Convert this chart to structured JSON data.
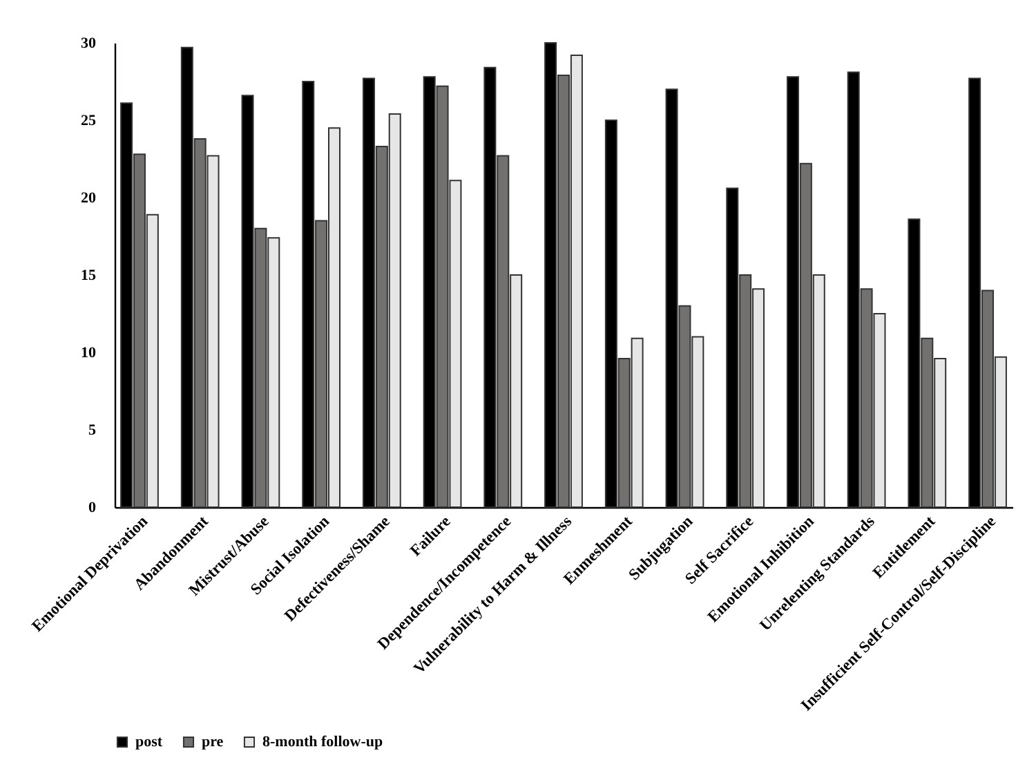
{
  "chart_data": {
    "type": "bar",
    "categories": [
      "Emotional Deprivation",
      "Abandonment",
      "Mistrust/Abuse",
      "Social Isolation",
      "Defectiveness/Shame",
      "Failure",
      "Dependence/Incompetence",
      "Vulnerability to Harm & Illness",
      "Enmeshment",
      "Subjugation",
      "Self Sacrifice",
      "Emotional Inhibition",
      "Unrelenting Standards",
      "Entitlement",
      "Insufficient Self-Control/Self-Discipline"
    ],
    "series": [
      {
        "name": "post",
        "color": "#000000",
        "values": [
          26.1,
          29.7,
          26.6,
          27.5,
          27.7,
          27.8,
          28.4,
          30.0,
          25.0,
          27.0,
          20.6,
          27.8,
          28.1,
          18.6,
          27.7
        ]
      },
      {
        "name": "pre",
        "color": "#737070",
        "values": [
          22.8,
          23.8,
          18.0,
          18.5,
          23.3,
          27.2,
          22.7,
          27.9,
          9.6,
          13.0,
          15.0,
          22.2,
          14.1,
          10.9,
          14.0
        ]
      },
      {
        "name": "8-month follow-up",
        "color": "#e6e6e6",
        "values": [
          18.9,
          22.7,
          17.4,
          24.5,
          25.4,
          21.1,
          15.0,
          29.2,
          10.9,
          11.0,
          14.1,
          15.0,
          12.5,
          9.6,
          9.7
        ]
      }
    ],
    "ylim": [
      0,
      30
    ],
    "yticks": [
      0,
      5,
      10,
      15,
      20,
      25,
      30
    ],
    "grid": false,
    "legend": "bottom"
  }
}
